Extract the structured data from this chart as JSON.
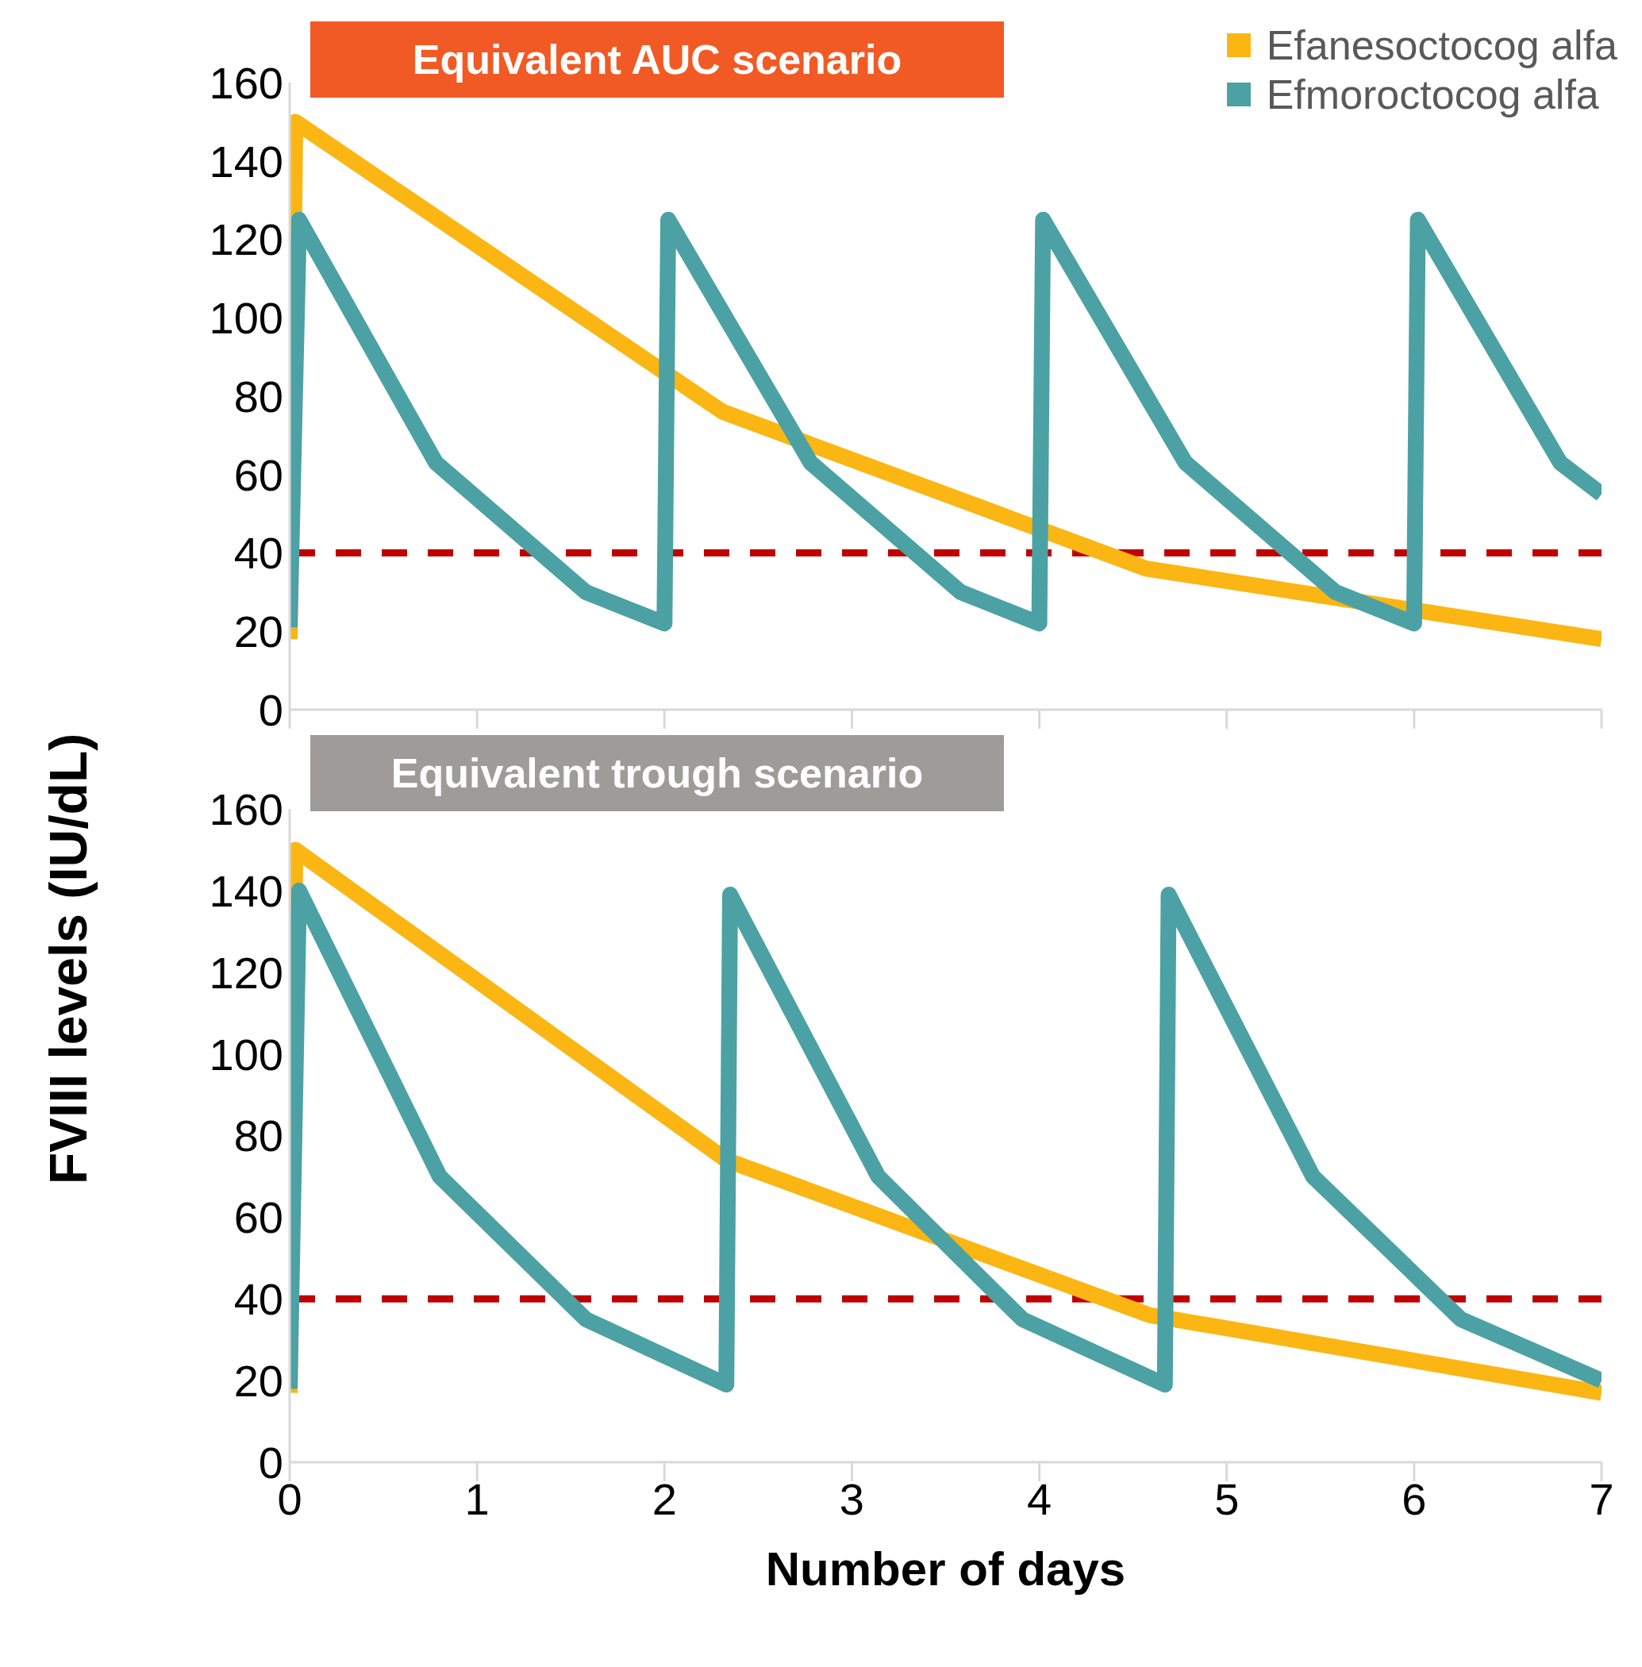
{
  "chart_data": [
    {
      "type": "line",
      "title": "Equivalent AUC scenario",
      "ylabel": "FVIII levels (IU/dL)",
      "xlim": [
        0,
        7
      ],
      "xticks": [
        0,
        1,
        2,
        3,
        4,
        5,
        6,
        7
      ],
      "ylim": [
        0,
        160
      ],
      "yticks": [
        0,
        20,
        40,
        60,
        80,
        100,
        120,
        140,
        160
      ],
      "tick_labels": "y",
      "legend": "top right",
      "ref_lines": [
        {
          "axis": "y",
          "value": 40,
          "color": "#c00000",
          "line_style": "dashed"
        }
      ],
      "series": [
        {
          "name": "Efanesoctocog alfa",
          "color": "#fbb614",
          "x": [
            0,
            0.03,
            2.31,
            4.57,
            7
          ],
          "values": [
            18,
            150,
            76,
            36,
            18
          ]
        },
        {
          "name": "Efmoroctocog alfa",
          "color": "#4ca1a4",
          "x": [
            0,
            0.05,
            0.78,
            1.58,
            2,
            2.02,
            2.78,
            3.58,
            4,
            4.02,
            4.78,
            5.58,
            6,
            6.02,
            6.78,
            7
          ],
          "values": [
            21,
            125,
            63,
            30,
            22,
            125,
            63,
            30,
            22,
            125,
            63,
            30,
            22,
            125,
            63,
            55
          ]
        }
      ]
    },
    {
      "type": "line",
      "title": "Equivalent trough scenario",
      "xlabel": "Number of days",
      "xlim": [
        0,
        7
      ],
      "xticks": [
        0,
        1,
        2,
        3,
        4,
        5,
        6,
        7
      ],
      "ylim": [
        0,
        160
      ],
      "yticks": [
        0,
        20,
        40,
        60,
        80,
        100,
        120,
        140,
        160
      ],
      "ref_lines": [
        {
          "axis": "y",
          "value": 40,
          "color": "#c00000",
          "line_style": "dashed"
        }
      ],
      "series": [
        {
          "color": "#fbb614",
          "x": [
            0,
            0.03,
            2.33,
            4.59,
            7
          ],
          "values": [
            17,
            150,
            74,
            36,
            17
          ]
        },
        {
          "color": "#4ca1a4",
          "x": [
            0,
            0.05,
            0.8,
            1.58,
            2.33,
            2.35,
            3.14,
            3.91,
            4.67,
            4.69,
            5.46,
            6.25,
            7
          ],
          "values": [
            18,
            140,
            70,
            35,
            19,
            139,
            70,
            35,
            19,
            139,
            70,
            35,
            20
          ]
        }
      ]
    }
  ]
}
